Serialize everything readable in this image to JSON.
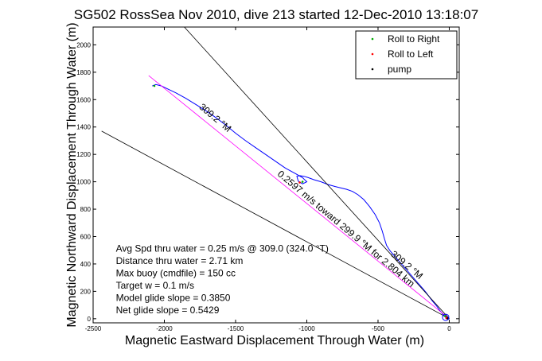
{
  "chart_data": {
    "type": "line",
    "title": "SG502 RossSea Nov 2010, dive 213 started 12-Dec-2010 13:18:07",
    "xlabel": "Magnetic Eastward Displacement Through Water (m)",
    "ylabel": "Magnetic Northward Displacement Through Water (m)",
    "xlim": [
      -2500,
      70
    ],
    "ylim": [
      -30,
      2130
    ],
    "xticks": [
      -2500,
      -2000,
      -1500,
      -1000,
      -500,
      0
    ],
    "yticks": [
      0,
      200,
      400,
      600,
      800,
      1000,
      1200,
      1400,
      1600,
      1800,
      2000
    ],
    "legend": {
      "placement": "top-right",
      "entries": [
        {
          "label": "Roll to Right",
          "color": "#00aa00",
          "marker": "dot"
        },
        {
          "label": "Roll to Left",
          "color": "#ff0000",
          "marker": "dot"
        },
        {
          "label": "pump",
          "color": "#000000",
          "marker": "dot"
        }
      ]
    },
    "series": [
      {
        "role": "track",
        "color": "#0000ff",
        "points": [
          [
            0,
            0
          ],
          [
            -20,
            5
          ],
          [
            -35,
            20
          ],
          [
            -50,
            40
          ],
          [
            -70,
            65
          ],
          [
            -90,
            95
          ],
          [
            -115,
            125
          ],
          [
            -140,
            160
          ],
          [
            -165,
            195
          ],
          [
            -190,
            225
          ],
          [
            -215,
            255
          ],
          [
            -240,
            285
          ],
          [
            -265,
            315
          ],
          [
            -290,
            345
          ],
          [
            -315,
            375
          ],
          [
            -340,
            405
          ],
          [
            -365,
            435
          ],
          [
            -390,
            465
          ],
          [
            -415,
            495
          ],
          [
            -440,
            535
          ],
          [
            -455,
            585
          ],
          [
            -470,
            640
          ],
          [
            -490,
            700
          ],
          [
            -520,
            760
          ],
          [
            -560,
            820
          ],
          [
            -600,
            870
          ],
          [
            -640,
            905
          ],
          [
            -680,
            930
          ],
          [
            -720,
            945
          ],
          [
            -760,
            955
          ],
          [
            -800,
            965
          ],
          [
            -850,
            980
          ],
          [
            -900,
            1000
          ],
          [
            -950,
            1015
          ],
          [
            -990,
            1030
          ],
          [
            -1020,
            1040
          ],
          [
            -1050,
            1045
          ],
          [
            -1070,
            1040
          ],
          [
            -1060,
            1005
          ],
          [
            -1030,
            985
          ],
          [
            -1000,
            1000
          ],
          [
            -1030,
            1030
          ],
          [
            -1080,
            1060
          ],
          [
            -1150,
            1100
          ],
          [
            -1220,
            1150
          ],
          [
            -1290,
            1200
          ],
          [
            -1360,
            1250
          ],
          [
            -1430,
            1300
          ],
          [
            -1500,
            1355
          ],
          [
            -1570,
            1415
          ],
          [
            -1640,
            1470
          ],
          [
            -1710,
            1520
          ],
          [
            -1780,
            1565
          ],
          [
            -1850,
            1610
          ],
          [
            -1920,
            1650
          ],
          [
            -1970,
            1675
          ],
          [
            -2020,
            1700
          ],
          [
            -2060,
            1710
          ],
          [
            -2085,
            1700
          ]
        ]
      },
      {
        "role": "dive-direction",
        "color": "#ff00ff",
        "points": [
          [
            0,
            0
          ],
          [
            -2110,
            1775
          ]
        ]
      },
      {
        "role": "reference-line",
        "color": "#000000",
        "points": [
          [
            0,
            0
          ],
          [
            -1860,
            2130
          ]
        ]
      },
      {
        "role": "reference-line",
        "color": "#000000",
        "points": [
          [
            0,
            0
          ],
          [
            -2440,
            1370
          ]
        ]
      }
    ],
    "markers": {
      "roll_right": [
        [
          -2070,
          1700
        ],
        [
          -1030,
          1000
        ],
        [
          -30,
          20
        ]
      ],
      "roll_left": [
        [
          -1050,
          995
        ],
        [
          -20,
          5
        ]
      ],
      "pump": [
        [
          -10,
          0
        ]
      ]
    },
    "annotations": [
      {
        "text": "Avg Spd thru water =  0.25 m/s @ 309.0  (324.0 °T)",
        "x": -2340,
        "y": 490
      },
      {
        "text": "Distance thru water = 2.71 km",
        "x": -2340,
        "y": 400
      },
      {
        "text": "Max buoy (cmdfile) = 150 cc",
        "x": -2340,
        "y": 310
      },
      {
        "text": "Target w = 0.1 m/s",
        "x": -2340,
        "y": 220
      },
      {
        "text": "Model glide slope = 0.3850",
        "x": -2340,
        "y": 130
      },
      {
        "text": "Net glide slope = 0.5429",
        "x": -2340,
        "y": 40
      },
      {
        "text": "309.2 °M",
        "x": -1760,
        "y": 1540,
        "angle": 40
      },
      {
        "text": "0.2597 m/s toward 299.9 °M for 2.804 km",
        "x": -1210,
        "y": 1050,
        "angle": 40
      },
      {
        "text": "309.2 °M",
        "x": -415,
        "y": 465,
        "angle": 40
      }
    ]
  }
}
